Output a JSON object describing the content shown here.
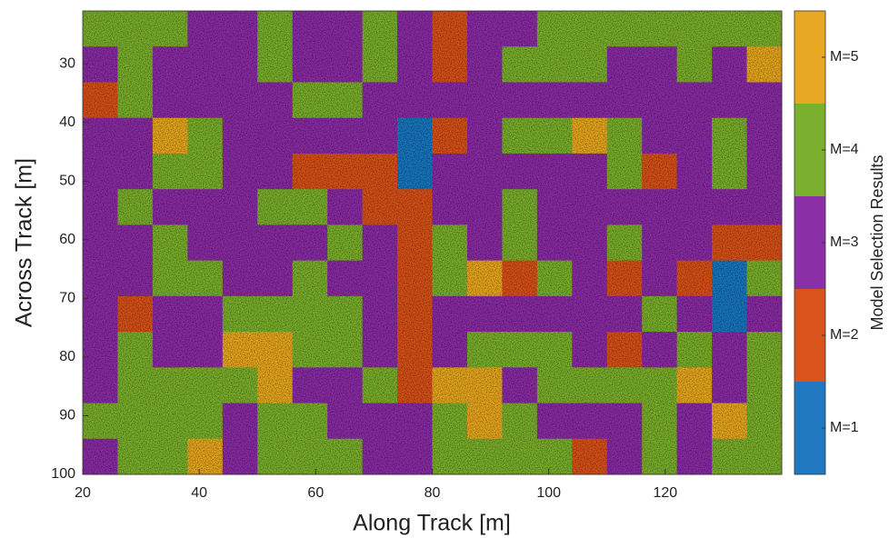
{
  "chart_data": {
    "type": "heatmap",
    "xlabel": "Along Track [m]",
    "ylabel": "Across Track [m]",
    "xlim": [
      20,
      140
    ],
    "ylim": [
      21,
      100
    ],
    "y_reversed": true,
    "xticks": [
      20,
      40,
      60,
      80,
      100,
      120
    ],
    "yticks": [
      30,
      40,
      50,
      60,
      70,
      80,
      90,
      100
    ],
    "z": [
      [
        4,
        4,
        4,
        3,
        3,
        4,
        3,
        3,
        4,
        3,
        2,
        3,
        3,
        4,
        4,
        4,
        4,
        4,
        4,
        4
      ],
      [
        3,
        4,
        3,
        3,
        3,
        4,
        3,
        3,
        4,
        3,
        2,
        3,
        4,
        4,
        4,
        3,
        3,
        4,
        3,
        5
      ],
      [
        2,
        4,
        3,
        3,
        3,
        3,
        4,
        4,
        3,
        3,
        3,
        3,
        3,
        3,
        3,
        3,
        3,
        3,
        3,
        3
      ],
      [
        3,
        3,
        5,
        4,
        3,
        3,
        3,
        3,
        3,
        1,
        2,
        3,
        4,
        4,
        5,
        4,
        3,
        3,
        4,
        3
      ],
      [
        3,
        3,
        4,
        4,
        3,
        3,
        2,
        2,
        2,
        1,
        3,
        3,
        3,
        3,
        3,
        4,
        2,
        3,
        4,
        3
      ],
      [
        3,
        4,
        3,
        3,
        3,
        4,
        4,
        3,
        2,
        2,
        3,
        3,
        4,
        3,
        3,
        3,
        3,
        3,
        3,
        3
      ],
      [
        3,
        3,
        4,
        3,
        3,
        3,
        3,
        4,
        3,
        2,
        4,
        3,
        4,
        3,
        3,
        4,
        3,
        3,
        2,
        2
      ],
      [
        3,
        3,
        4,
        4,
        3,
        3,
        4,
        3,
        3,
        2,
        4,
        5,
        2,
        4,
        3,
        2,
        3,
        2,
        1,
        4
      ],
      [
        3,
        2,
        3,
        3,
        4,
        4,
        4,
        4,
        3,
        2,
        3,
        3,
        3,
        3,
        3,
        3,
        4,
        3,
        1,
        3
      ],
      [
        3,
        4,
        3,
        3,
        5,
        5,
        4,
        4,
        3,
        2,
        3,
        4,
        4,
        4,
        3,
        2,
        3,
        4,
        3,
        4
      ],
      [
        3,
        4,
        4,
        4,
        4,
        5,
        3,
        3,
        4,
        2,
        5,
        5,
        3,
        4,
        4,
        4,
        4,
        5,
        3,
        4
      ],
      [
        4,
        4,
        4,
        4,
        3,
        4,
        4,
        3,
        3,
        3,
        4,
        5,
        4,
        3,
        3,
        3,
        4,
        3,
        5,
        4
      ],
      [
        3,
        4,
        4,
        5,
        3,
        4,
        4,
        4,
        3,
        3,
        4,
        4,
        4,
        4,
        2,
        3,
        4,
        3,
        4,
        4
      ]
    ],
    "colorbar": {
      "label": "Model Selection Results",
      "clim": [
        0.5,
        5.5
      ],
      "colors": [
        "#1f78c0",
        "#d9531a",
        "#8b2fa6",
        "#7bb02e",
        "#e8a824"
      ],
      "ticks": [
        {
          "value": 1,
          "label": "M=1"
        },
        {
          "value": 2,
          "label": "M=2"
        },
        {
          "value": 3,
          "label": "M=3"
        },
        {
          "value": 4,
          "label": "M=4"
        },
        {
          "value": 5,
          "label": "M=5"
        }
      ]
    }
  }
}
